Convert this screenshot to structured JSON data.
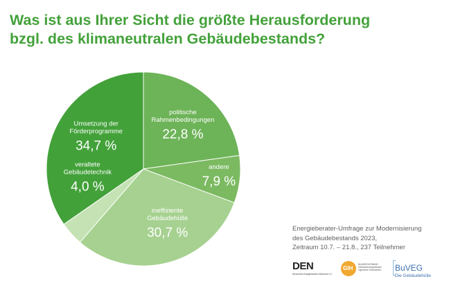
{
  "title": {
    "line1": "Was ist aus Ihrer Sicht die größte Herausforderung",
    "line2": "bzgl. des klimaneutralen Gebäudebestands?"
  },
  "chart_data": {
    "type": "pie",
    "title": "Was ist aus Ihrer Sicht die größte Herausforderung bzgl. des klimaneutralen Gebäudebestands?",
    "start_angle_deg": -90,
    "slices": [
      {
        "label_lines": [
          "politische",
          "Rahmenbedingungen"
        ],
        "value": 22.8,
        "display": "22,8 %",
        "color": "#6db358"
      },
      {
        "label_lines": [
          "andere"
        ],
        "value": 7.9,
        "display": "7,9 %",
        "color": "#7cba62"
      },
      {
        "label_lines": [
          "ineffiziente",
          "Gebäudehülle"
        ],
        "value": 30.7,
        "display": "30,7 %",
        "color": "#a6d190"
      },
      {
        "label_lines": [
          "veraltete",
          "Gebäudetechnik"
        ],
        "value": 4.0,
        "display": "4,0 %",
        "color": "#c4e2b3"
      },
      {
        "label_lines": [
          "Umsetzung der",
          "Förderprogramme"
        ],
        "value": 34.7,
        "display": "34,7 %",
        "color": "#43a13a"
      }
    ]
  },
  "source": {
    "line1": "Energieberater-Umfrage zur Modernisierung",
    "line2": "des Gebäudebestands 2023,",
    "line3": "Zeitraum 10.7. – 21.8., 237 Teilnehmer"
  },
  "logos": {
    "den": {
      "mark": "DEN",
      "sub": "Deutsches Energieberater-Netzwerk e.V."
    },
    "gih": {
      "mark": "GIH",
      "line1": "BUNDESVERBAND",
      "line2": "Gebäudeenergieberater",
      "line3": "Ingenieure Handwerker"
    },
    "buveg": {
      "mark": "BuVEG",
      "sub": "Die Gebäudehülle"
    }
  },
  "colors": {
    "title": "#43a13a",
    "label_text": "#ffffff",
    "source_text": "#5f5f5f"
  }
}
